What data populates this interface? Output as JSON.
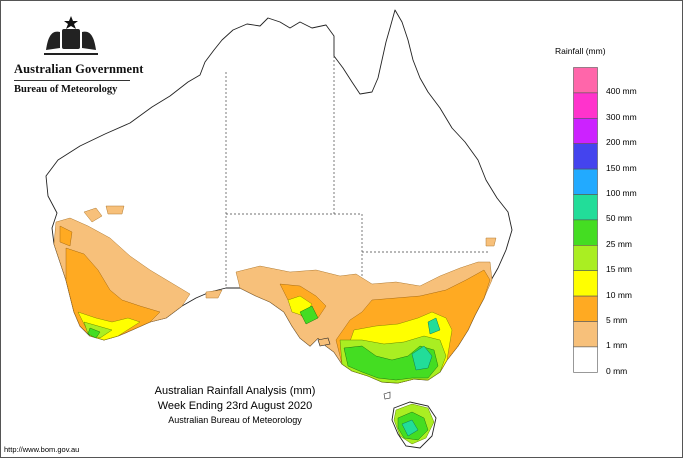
{
  "branding": {
    "government": "Australian Government",
    "bureau": "Bureau of Meteorology",
    "crest_icon": "commonwealth-coat-of-arms-icon"
  },
  "legend": {
    "title": "Rainfall (mm)",
    "items": [
      {
        "label": "",
        "color": "#ff66aa"
      },
      {
        "label": "400 mm",
        "color": "#ff33cc"
      },
      {
        "label": "300 mm",
        "color": "#cc22ff"
      },
      {
        "label": "200 mm",
        "color": "#4444ee"
      },
      {
        "label": "150 mm",
        "color": "#22aaff"
      },
      {
        "label": "100 mm",
        "color": "#22dd99"
      },
      {
        "label": "50 mm",
        "color": "#44dd22"
      },
      {
        "label": "25 mm",
        "color": "#aaee22"
      },
      {
        "label": "15 mm",
        "color": "#ffff00"
      },
      {
        "label": "10 mm",
        "color": "#ffaa22"
      },
      {
        "label": "5 mm",
        "color": "#f7c07a"
      },
      {
        "label": "1 mm",
        "color": "#ffffff"
      },
      {
        "label": "0 mm",
        "color": ""
      }
    ]
  },
  "caption": {
    "line1": "Australian Rainfall Analysis (mm)",
    "line2": "Week Ending 23rd August 2020",
    "line3": "Australian Bureau of Meteorology"
  },
  "url": "http://www.bom.gov.au"
}
